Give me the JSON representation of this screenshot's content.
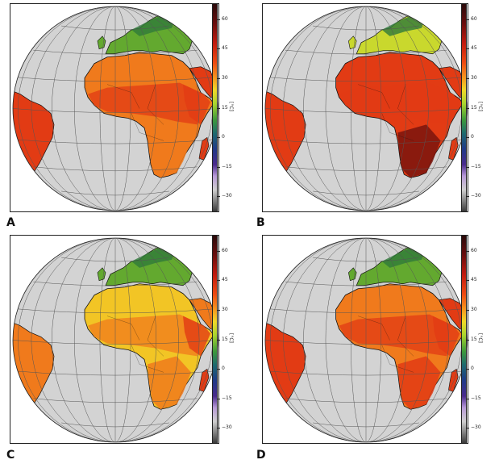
{
  "panels": [
    {
      "id": "A",
      "label": "A",
      "variant": "moderate"
    },
    {
      "id": "B",
      "label": "B",
      "variant": "hot"
    },
    {
      "id": "C",
      "label": "C",
      "variant": "mild"
    },
    {
      "id": "D",
      "label": "D",
      "variant": "moderate-hot"
    }
  ],
  "colorbar": {
    "unit": "[°C]",
    "ticks": [
      "60",
      "45",
      "30",
      "15",
      "0",
      "−15",
      "−30"
    ],
    "tick_values": [
      60,
      45,
      30,
      15,
      0,
      -15,
      -30
    ],
    "range": [
      -38,
      68
    ],
    "stops": [
      {
        "v": 68,
        "c": "#2a0a0a"
      },
      {
        "v": 58,
        "c": "#6a0d0d"
      },
      {
        "v": 48,
        "c": "#c21a0e"
      },
      {
        "v": 38,
        "c": "#ee4a12"
      },
      {
        "v": 30,
        "c": "#f79a1e"
      },
      {
        "v": 24,
        "c": "#f0d828"
      },
      {
        "v": 17,
        "c": "#a8d52e"
      },
      {
        "v": 9,
        "c": "#3e9a3a"
      },
      {
        "v": 2,
        "c": "#1d6a6e"
      },
      {
        "v": -6,
        "c": "#1f3a88"
      },
      {
        "v": -14,
        "c": "#4a2a8c"
      },
      {
        "v": -20,
        "c": "#b89ad8"
      },
      {
        "v": -27,
        "c": "#cfcfcf"
      },
      {
        "v": -38,
        "c": "#3a3a3a"
      }
    ]
  },
  "colors": {
    "ocean": "#d3d3d3",
    "grid": "#555555",
    "coast": "#111111",
    "europe_green": "#63a92f",
    "europe_yellow": "#c9d82d",
    "sahara_yellow": "#f2c525",
    "africa_orange": "#f07a1c",
    "africa_red": "#e23b14",
    "hot_dark": "#7a150d"
  }
}
